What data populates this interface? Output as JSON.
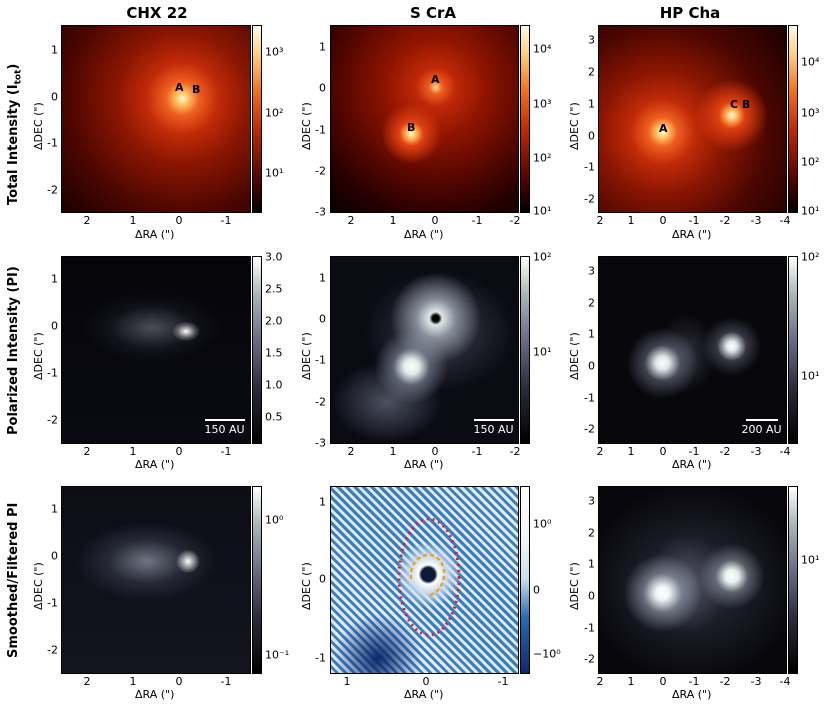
{
  "columns": [
    "CHX 22",
    "S CrA",
    "HP Cha"
  ],
  "rows": [
    "Total Intensity (I",
    "tot",
    ")",
    "Polarized Intensity (PI)",
    "Smoothed/Filtered PI"
  ],
  "axis": {
    "xlabel": "ΔRA (\")",
    "ylabel": "ΔDEC (\")"
  },
  "ticks": {
    "chx_x": [
      "2",
      "1",
      "0",
      "-1"
    ],
    "chx_y": [
      "1",
      "0",
      "-1",
      "-2"
    ],
    "scra_x": [
      "2",
      "1",
      "0",
      "-1",
      "-2"
    ],
    "scra_y": [
      "1",
      "0",
      "-1",
      "-2",
      "-3"
    ],
    "hpcha_x": [
      "2",
      "1",
      "0",
      "-1",
      "-2",
      "-3",
      "-4"
    ],
    "hpcha_y": [
      "3",
      "2",
      "1",
      "0",
      "-1",
      "-2"
    ],
    "zoom_x": [
      "1",
      "0",
      "-1"
    ],
    "zoom_y": [
      "1",
      "0",
      "-1"
    ]
  },
  "colorbars": {
    "r1c1": [
      "10³",
      "10²",
      "10¹"
    ],
    "r1c2": [
      "10⁴",
      "10³",
      "10²",
      "10¹"
    ],
    "r1c3": [
      "10⁴",
      "10³",
      "10²",
      "10¹"
    ],
    "r2c1": [
      "3.0",
      "2.5",
      "2.0",
      "1.5",
      "1.0",
      "0.5"
    ],
    "r2c2": [
      "10²",
      "10¹"
    ],
    "r2c3": [
      "10²",
      "10¹"
    ],
    "r3c1": [
      "10⁰",
      "10⁻¹"
    ],
    "r3c2": [
      "10⁰",
      "0",
      "−10⁰"
    ],
    "r3c3": [
      "10¹"
    ]
  },
  "star_labels": {
    "chx": [
      "A",
      "B"
    ],
    "scra": [
      "A",
      "B"
    ],
    "hpcha": [
      "A",
      "C B"
    ]
  },
  "scalebars": [
    "150 AU",
    "150 AU",
    "200 AU"
  ],
  "colors": {
    "hot_center": "#fff6d0",
    "hot_mid": "#e03a0c",
    "hot_edge": "#1a0000",
    "bone_bright": "#e6f0f0",
    "blue_div": "#1f5fa8",
    "ellipse": "#e02020",
    "arc": "#f5a020"
  }
}
